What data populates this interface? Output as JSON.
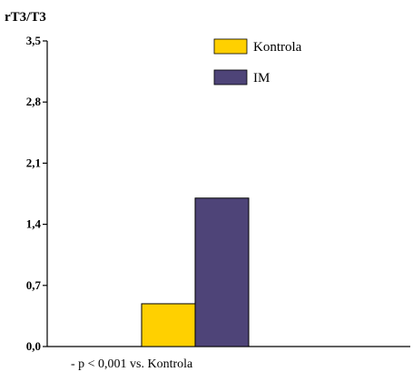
{
  "chart_data": {
    "type": "bar",
    "ylabel": "rT3/T3",
    "xlabel": "",
    "ylim": [
      0,
      3.5
    ],
    "yticks": [
      "0,0",
      "0,7",
      "1,4",
      "2,1",
      "2,8",
      "3,5"
    ],
    "ytick_values": [
      0,
      0.7,
      1.4,
      2.1,
      2.8,
      3.5
    ],
    "categories": [
      ""
    ],
    "series": [
      {
        "name": "Kontrola",
        "values": [
          0.49
        ],
        "color": "#FFD000"
      },
      {
        "name": "IM",
        "values": [
          1.7
        ],
        "color": "#4E4478"
      }
    ],
    "legend_position": "top-right",
    "grid": false,
    "footnote": "- p < 0,001 vs. Kontrola"
  }
}
